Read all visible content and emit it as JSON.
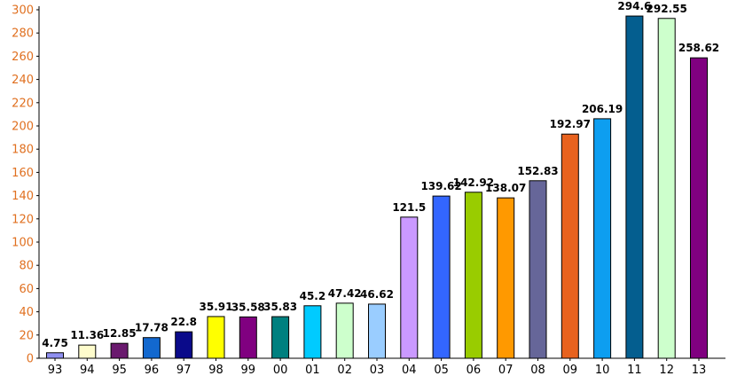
{
  "chart_data": {
    "type": "bar",
    "title": "",
    "xlabel": "",
    "ylabel": "",
    "categories": [
      "93",
      "94",
      "95",
      "96",
      "97",
      "98",
      "99",
      "00",
      "01",
      "02",
      "03",
      "04",
      "05",
      "06",
      "07",
      "08",
      "09",
      "10",
      "11",
      "12",
      "13"
    ],
    "values": [
      4.75,
      11.36,
      12.85,
      17.78,
      22.8,
      35.91,
      35.58,
      35.83,
      45.2,
      47.42,
      46.62,
      121.5,
      139.62,
      142.92,
      138.07,
      152.83,
      192.97,
      206.19,
      294.6,
      292.55,
      258.62
    ],
    "value_labels": [
      "4.75",
      "11.36",
      "12.85",
      "17.78",
      "22.8",
      "35.91",
      "35.58",
      "35.83",
      "45.2",
      "47.42",
      "46.62",
      "121.5",
      "139.62",
      "142.92",
      "138.07",
      "152.83",
      "192.97",
      "206.19",
      "294.6",
      "292.55",
      "258.62"
    ],
    "bar_colors": [
      "#8f8ff0",
      "#fefccc",
      "#6a1a6e",
      "#1268cf",
      "#0a0a8a",
      "#ffff00",
      "#800080",
      "#00807f",
      "#00cbff",
      "#cdffcc",
      "#9acdff",
      "#ca99ff",
      "#3366ff",
      "#99cc00",
      "#ff9900",
      "#666699",
      "#e8621e",
      "#0d9ef0",
      "#045e8f",
      "#cdffcc",
      "#800080"
    ],
    "ylim": [
      0,
      300
    ],
    "yticks": [
      0,
      20,
      40,
      60,
      80,
      100,
      120,
      140,
      160,
      180,
      200,
      220,
      240,
      260,
      280,
      300
    ],
    "y_tick_color": "#e07020",
    "grid": false,
    "legend": "none"
  }
}
